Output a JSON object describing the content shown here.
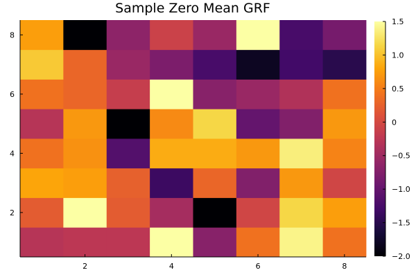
{
  "chart_data": {
    "type": "heatmap",
    "title": "Sample Zero Mean GRF",
    "xlabel": "",
    "ylabel": "",
    "x": [
      1,
      2,
      3,
      4,
      5,
      6,
      7,
      8
    ],
    "y": [
      1,
      2,
      3,
      4,
      5,
      6,
      7,
      8
    ],
    "xlim": [
      0.5,
      8.5
    ],
    "ylim": [
      0.5,
      8.5
    ],
    "xticks": [
      2,
      4,
      6,
      8
    ],
    "yticks": [
      2,
      4,
      6,
      8
    ],
    "grid": false,
    "colormap": "inferno",
    "colorbar": {
      "range": [
        -2.0,
        1.5
      ],
      "ticks": [
        -2.0,
        -1.5,
        -1.0,
        -0.5,
        0.0,
        0.5,
        1.0,
        1.5
      ],
      "tick_labels": [
        "−2.0",
        "−1.5",
        "−1.0",
        "−0.5",
        "0",
        "0.5",
        "1.0",
        "1.5"
      ]
    },
    "z": [
      [
        -0.3,
        -0.25,
        -0.25,
        1.5,
        -0.7,
        0.4,
        1.4,
        0.4
      ],
      [
        0.2,
        1.5,
        0.2,
        -0.45,
        -2.0,
        -0.05,
        1.15,
        0.75
      ],
      [
        0.8,
        0.75,
        0.25,
        -1.35,
        0.3,
        -0.75,
        0.7,
        -0.05
      ],
      [
        0.4,
        0.65,
        -1.15,
        0.85,
        0.85,
        0.7,
        1.35,
        0.55
      ],
      [
        -0.3,
        0.7,
        -2.0,
        0.6,
        1.15,
        -1.0,
        -0.75,
        0.7
      ],
      [
        0.4,
        0.3,
        -0.15,
        1.5,
        -0.7,
        -0.55,
        -0.35,
        0.4
      ],
      [
        1.05,
        0.3,
        -0.55,
        -0.8,
        -1.25,
        -1.8,
        -1.3,
        -1.5
      ],
      [
        0.75,
        -2.0,
        -0.65,
        -0.1,
        -0.55,
        1.5,
        -1.25,
        -0.85
      ]
    ]
  }
}
